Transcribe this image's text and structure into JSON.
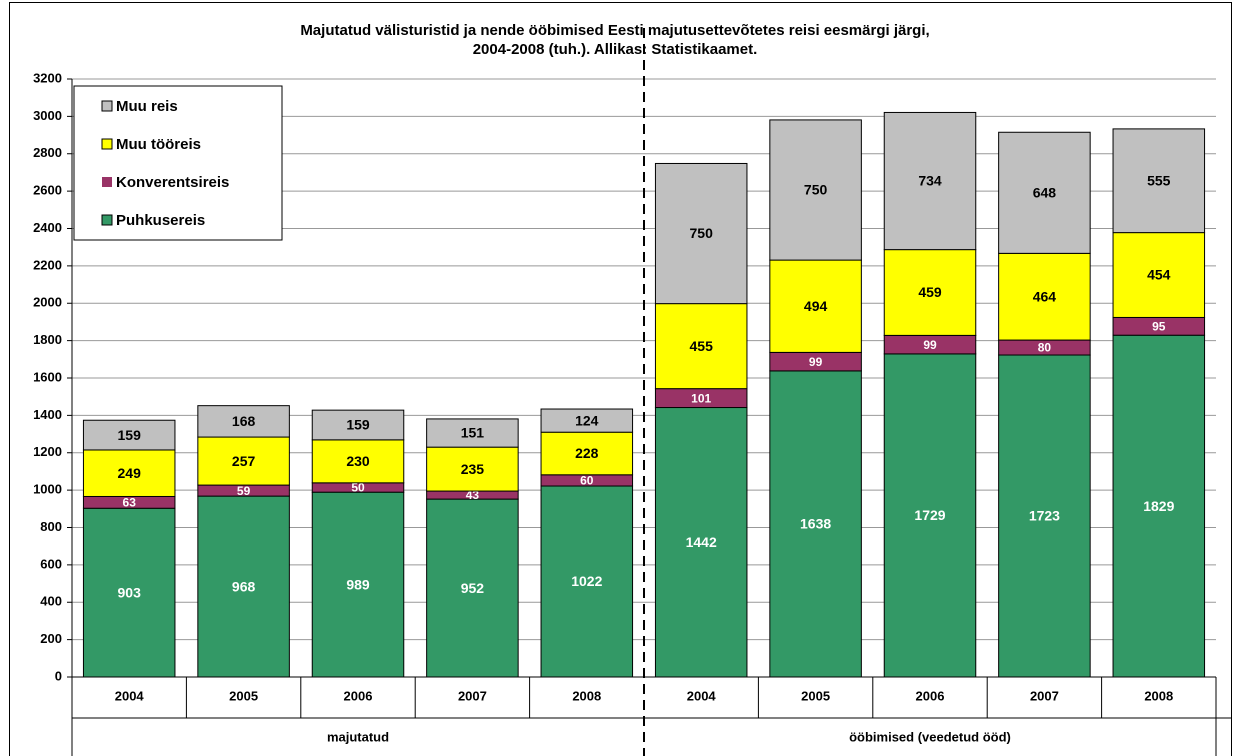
{
  "chart_data": {
    "type": "stacked_bar",
    "title_lines": [
      "Majutatud välisturistid  ja nende ööbimised Eesti majutusettevõtetes reisi eesmärgi järgi,",
      "2004-2008 (tuh.). Allikas:  Statistikaamet."
    ],
    "groups": [
      "majutatud",
      "ööbimised (veedetud  ööd)"
    ],
    "categories": [
      "2004",
      "2005",
      "2006",
      "2007",
      "2008",
      "2004",
      "2005",
      "2006",
      "2007",
      "2008"
    ],
    "series": [
      {
        "name": "Puhkusereis",
        "color": "#339966",
        "label_color": "#ffffff",
        "values": [
          903,
          968,
          989,
          952,
          1022,
          1442,
          1638,
          1729,
          1723,
          1829
        ]
      },
      {
        "name": "Konverentsireis",
        "color": "#993366",
        "label_color": "#ffffff",
        "values": [
          63,
          59,
          50,
          43,
          60,
          101,
          99,
          99,
          80,
          95
        ]
      },
      {
        "name": "Muu tööreis",
        "color": "#ffff00",
        "label_color": "#000000",
        "values": [
          249,
          257,
          230,
          235,
          228,
          455,
          494,
          459,
          464,
          454
        ]
      },
      {
        "name": "Muu reis",
        "color": "#c0c0c0",
        "label_color": "#000000",
        "values": [
          159,
          168,
          159,
          151,
          124,
          750,
          750,
          734,
          648,
          555
        ]
      }
    ],
    "ylim": [
      0,
      3200
    ],
    "yticks": [
      0,
      200,
      400,
      600,
      800,
      1000,
      1200,
      1400,
      1600,
      1800,
      2000,
      2200,
      2400,
      2600,
      2800,
      3000,
      3200
    ],
    "grid": true,
    "legend": "top-left"
  }
}
